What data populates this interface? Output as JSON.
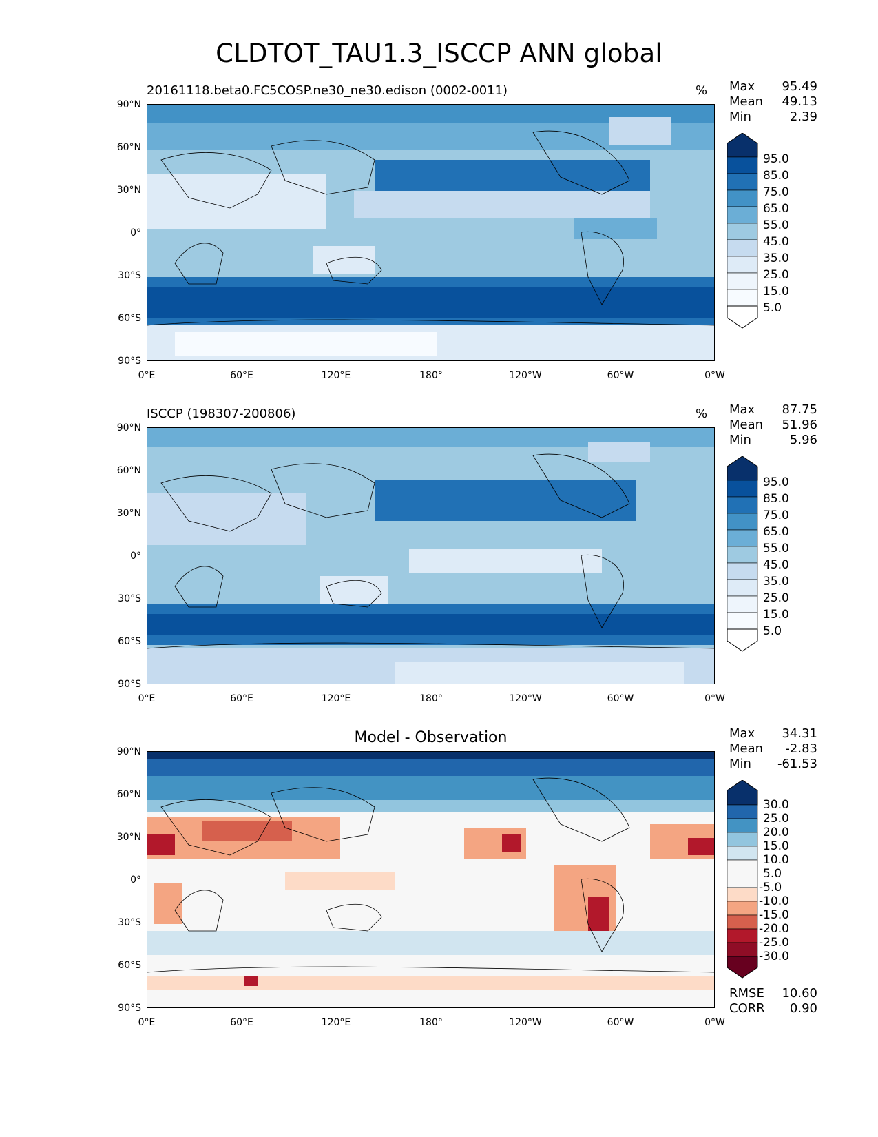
{
  "title": "CLDTOT_TAU1.3_ISCCP ANN global",
  "lat_labels": [
    "90°N",
    "60°N",
    "30°N",
    "0°",
    "30°S",
    "60°S",
    "90°S"
  ],
  "lon_labels": [
    "0°E",
    "60°E",
    "120°E",
    "180°",
    "120°W",
    "60°W",
    "0°W"
  ],
  "panels": [
    {
      "title": "20161118.beta0.FC5COSP.ne30_ne30.edison (0002-0011)",
      "units": "%",
      "stats": [
        {
          "label": "Max",
          "value": "95.49"
        },
        {
          "label": "Mean",
          "value": "49.13"
        },
        {
          "label": "Min",
          "value": "2.39"
        }
      ],
      "colorbar": {
        "labels": [
          "95.0",
          "85.0",
          "75.0",
          "65.0",
          "55.0",
          "45.0",
          "35.0",
          "25.0",
          "15.0",
          "5.0"
        ],
        "colors": [
          "#08306b",
          "#08519c",
          "#2171b5",
          "#4292c6",
          "#6baed6",
          "#9ecae1",
          "#c6dbef",
          "#deebf7",
          "#f7fbff"
        ]
      }
    },
    {
      "title": "ISCCP (198307-200806)",
      "units": "%",
      "stats": [
        {
          "label": "Max",
          "value": "87.75"
        },
        {
          "label": "Mean",
          "value": "51.96"
        },
        {
          "label": "Min",
          "value": "5.96"
        }
      ],
      "colorbar": {
        "labels": [
          "95.0",
          "85.0",
          "75.0",
          "65.0",
          "55.0",
          "45.0",
          "35.0",
          "25.0",
          "15.0",
          "5.0"
        ],
        "colors": [
          "#08306b",
          "#08519c",
          "#2171b5",
          "#4292c6",
          "#6baed6",
          "#9ecae1",
          "#c6dbef",
          "#deebf7",
          "#f7fbff"
        ]
      }
    },
    {
      "title": "Model - Observation",
      "units": "",
      "stats": [
        {
          "label": "Max",
          "value": "34.31"
        },
        {
          "label": "Mean",
          "value": "-2.83"
        },
        {
          "label": "Min",
          "value": "-61.53"
        }
      ],
      "extra_stats": [
        {
          "label": "RMSE",
          "value": "10.60"
        },
        {
          "label": "CORR",
          "value": "0.90"
        }
      ],
      "colorbar": {
        "labels": [
          "30.0",
          "25.0",
          "20.0",
          "15.0",
          "10.0",
          "5.0",
          "-5.0",
          "-10.0",
          "-15.0",
          "-20.0",
          "-25.0",
          "-30.0"
        ],
        "colors": [
          "#08306b",
          "#2166ac",
          "#4393c3",
          "#92c5de",
          "#d1e5f0",
          "#f7f7f7",
          "#fddbc7",
          "#f4a582",
          "#d6604d",
          "#b2182b",
          "#67001f"
        ]
      }
    }
  ]
}
